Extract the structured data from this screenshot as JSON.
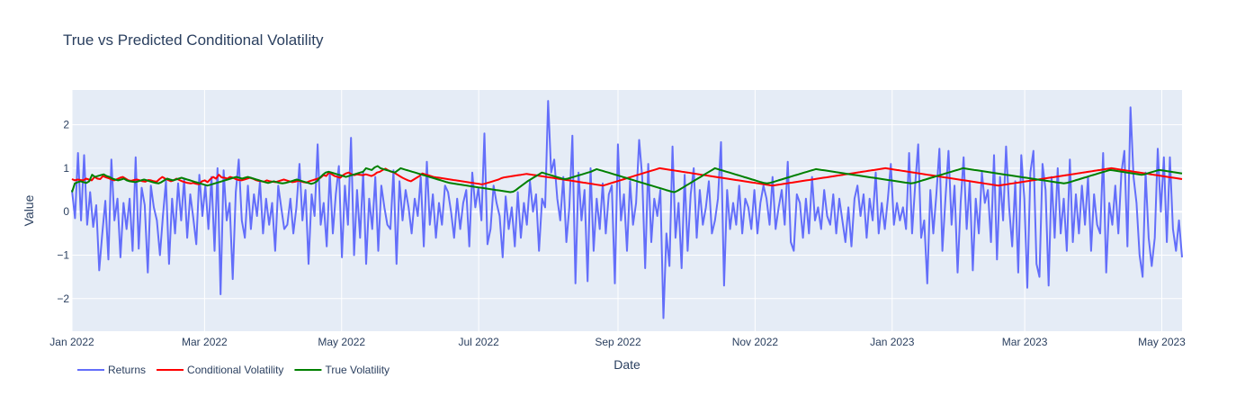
{
  "chart_data": {
    "type": "line",
    "title": "True vs Predicted Conditional Volatility",
    "xlabel": "Date",
    "ylabel": "Value",
    "x_start": "2022-01-01",
    "x_end": "2023-05-10",
    "xlim": [
      "2022-01-01",
      "2023-05-10"
    ],
    "ylim": [
      -2.75,
      2.8
    ],
    "x_ticks": [
      {
        "date": "2022-01-01",
        "label": "Jan 2022"
      },
      {
        "date": "2022-03-01",
        "label": "Mar 2022"
      },
      {
        "date": "2022-05-01",
        "label": "May 2022"
      },
      {
        "date": "2022-07-01",
        "label": "Jul 2022"
      },
      {
        "date": "2022-09-01",
        "label": "Sep 2022"
      },
      {
        "date": "2022-11-01",
        "label": "Nov 2022"
      },
      {
        "date": "2023-01-01",
        "label": "Jan 2023"
      },
      {
        "date": "2023-03-01",
        "label": "Mar 2023"
      },
      {
        "date": "2023-05-01",
        "label": "May 2023"
      }
    ],
    "y_ticks": [
      2,
      1,
      0,
      -1,
      -2
    ],
    "grid": true,
    "legend_position": "bottom-left",
    "background": "#e5ecf6",
    "series": [
      {
        "name": "Returns",
        "color": "#636efa",
        "values": [
          0.5,
          -0.15,
          1.35,
          -0.2,
          1.3,
          -0.3,
          0.45,
          -0.35,
          0.15,
          -1.35,
          -0.5,
          0.25,
          -1.1,
          1.2,
          -0.2,
          0.3,
          -1.05,
          0.2,
          -0.4,
          0.3,
          -0.9,
          1.25,
          -0.85,
          0.55,
          0.15,
          -1.4,
          0.6,
          0.1,
          -0.2,
          -1.0,
          -0.1,
          0.7,
          -1.2,
          0.3,
          -0.5,
          0.65,
          -0.2,
          0.75,
          -0.6,
          0.4,
          -0.15,
          -0.75,
          0.85,
          -0.1,
          0.6,
          -0.4,
          0.8,
          -0.9,
          1.0,
          -1.9,
          0.95,
          -0.2,
          0.2,
          -1.55,
          0.45,
          1.2,
          -0.2,
          -0.6,
          0.6,
          -0.4,
          0.4,
          -0.1,
          0.7,
          -0.5,
          0.3,
          -0.3,
          0.2,
          -0.9,
          0.6,
          0.1,
          -0.4,
          -0.3,
          0.3,
          -0.5,
          0.1,
          1.1,
          -0.2,
          0.5,
          -1.2,
          0.4,
          -0.1,
          1.55,
          -0.3,
          0.2,
          -0.8,
          0.9,
          -0.5,
          0.4,
          1.05,
          -1.05,
          0.6,
          -0.3,
          1.7,
          -1.0,
          0.5,
          -0.6,
          0.9,
          -1.2,
          0.3,
          -0.4,
          0.8,
          -0.9,
          0.6,
          0.1,
          -0.3,
          -0.4,
          0.95,
          -1.2,
          0.7,
          -0.2,
          0.5,
          0.1,
          -0.5,
          0.3,
          -0.1,
          0.8,
          -0.8,
          1.15,
          -0.3,
          0.4,
          -0.6,
          0.2,
          -0.3,
          0.6,
          0.45,
          0.0,
          -0.6,
          0.3,
          -0.4,
          0.2,
          0.5,
          -0.8,
          0.9,
          0.1,
          0.55,
          -0.2,
          1.8,
          -0.75,
          -0.4,
          0.6,
          0.2,
          -0.1,
          -1.05,
          0.35,
          -0.4,
          0.1,
          -0.8,
          0.45,
          -0.6,
          0.2,
          -0.3,
          0.7,
          0.0,
          0.4,
          -0.9,
          0.3,
          0.1,
          2.55,
          0.9,
          1.2,
          0.3,
          -0.2,
          0.8,
          -0.7,
          0.1,
          1.75,
          -1.65,
          0.9,
          -0.2,
          0.5,
          -1.6,
          1.0,
          -0.9,
          0.3,
          -0.4,
          0.65,
          -0.5,
          0.4,
          0.6,
          -1.65,
          1.55,
          -0.2,
          0.4,
          -0.9,
          0.7,
          -0.3,
          0.2,
          1.65,
          0.8,
          -1.3,
          1.1,
          -0.7,
          0.3,
          -0.1,
          0.5,
          -2.45,
          -0.5,
          -1.25,
          1.5,
          -0.6,
          0.2,
          -1.3,
          0.85,
          -0.9,
          0.4,
          1.0,
          -0.6,
          0.5,
          -0.3,
          0.1,
          0.7,
          -0.5,
          -0.2,
          0.3,
          1.6,
          -1.7,
          0.5,
          -0.4,
          0.2,
          -0.3,
          0.6,
          -0.5,
          0.3,
          0.1,
          -0.4,
          0.5,
          -0.5,
          0.2,
          0.6,
          0.3,
          -0.3,
          0.8,
          -0.4,
          0.1,
          0.5,
          -0.3,
          1.15,
          -0.7,
          -0.9,
          0.4,
          0.2,
          -0.6,
          0.3,
          -0.5,
          0.8,
          -0.2,
          0.1,
          -0.4,
          0.5,
          -0.1,
          -0.3,
          0.4,
          -0.5,
          0.3,
          -0.2,
          -0.7,
          0.1,
          -0.8,
          0.3,
          0.6,
          -0.1,
          0.4,
          -0.6,
          0.3,
          -0.2,
          0.9,
          -0.5,
          0.2,
          -0.4,
          0.3,
          1.1,
          -0.3,
          0.2,
          -0.2,
          0.1,
          -0.4,
          1.35,
          -0.5,
          0.6,
          1.55,
          -0.6,
          -0.2,
          -1.65,
          0.5,
          -0.5,
          0.4,
          1.45,
          -0.9,
          0.3,
          1.4,
          -0.3,
          0.6,
          -1.4,
          0.2,
          1.25,
          -0.4,
          0.7,
          -1.35,
          0.3,
          -0.5,
          0.9,
          0.2,
          0.5,
          -0.7,
          1.3,
          -1.1,
          0.8,
          -0.2,
          1.5,
          0.1,
          -0.8,
          0.7,
          -1.4,
          1.3,
          0.3,
          -1.75,
          0.9,
          1.4,
          -1.2,
          -1.5,
          1.1,
          0.5,
          -1.7,
          0.8,
          -0.6,
          1.0,
          -0.5,
          0.3,
          -0.9,
          1.2,
          -0.7,
          0.4,
          -0.5,
          0.6,
          -0.3,
          0.8,
          -0.9,
          0.4,
          -0.3,
          -0.5,
          1.35,
          -1.4,
          0.2,
          -0.3,
          0.6,
          -0.5,
          0.9,
          1.4,
          -0.8,
          2.4,
          0.8,
          0.2,
          -1.0,
          -1.5,
          0.9,
          -0.6,
          -1.25,
          -0.6,
          1.45,
          0.0,
          1.25,
          -0.7,
          1.25,
          -0.4,
          -0.9,
          -0.2,
          -1.05
        ]
      },
      {
        "name": "Conditional Volatility",
        "color": "#ff0000",
        "values": [
          0.75,
          0.72,
          0.74,
          0.73,
          0.72,
          0.76,
          0.74,
          0.72,
          0.8,
          0.76,
          0.75,
          0.82,
          0.79,
          0.77,
          0.74,
          0.72,
          0.75,
          0.78,
          0.8,
          0.76,
          0.72,
          0.71,
          0.73,
          0.74,
          0.72,
          0.7,
          0.69,
          0.73,
          0.72,
          0.7,
          0.69,
          0.75,
          0.8,
          0.76,
          0.73,
          0.7,
          0.72,
          0.76,
          0.73,
          0.7,
          0.68,
          0.66,
          0.65,
          0.66,
          0.64,
          0.63,
          0.7,
          0.72,
          0.68,
          0.75,
          0.8,
          0.76,
          0.85,
          0.79,
          0.78,
          0.76,
          0.8,
          0.78,
          0.75,
          0.73,
          0.72,
          0.74,
          0.76,
          0.78,
          0.76,
          0.73,
          0.71,
          0.7,
          0.69,
          0.72,
          0.7,
          0.69,
          0.68,
          0.7,
          0.72,
          0.74,
          0.72,
          0.7,
          0.68,
          0.69,
          0.71,
          0.7,
          0.68,
          0.67,
          0.7,
          0.72,
          0.74,
          0.76,
          0.78,
          0.84,
          0.82,
          0.9,
          0.86,
          0.82,
          0.8,
          0.78,
          0.84,
          0.88,
          0.9,
          0.86,
          0.84,
          0.86,
          0.85,
          0.84,
          0.86,
          0.84,
          0.82,
          0.85,
          0.9,
          0.92,
          0.96,
          0.99,
          0.95,
          0.92,
          0.9,
          0.86,
          0.82,
          0.78,
          0.75,
          0.72,
          0.7,
          0.74,
          0.78,
          0.82,
          0.88,
          0.86,
          0.84,
          0.82,
          0.8,
          0.79,
          0.78,
          0.77,
          0.76,
          0.75,
          0.74,
          0.73,
          0.72,
          0.71,
          0.7,
          0.69,
          0.68,
          0.67,
          0.66,
          0.65,
          0.64,
          0.63,
          0.64,
          0.66,
          0.68,
          0.7,
          0.72,
          0.74,
          0.77,
          0.79,
          0.8,
          0.81,
          0.82,
          0.83,
          0.84,
          0.85,
          0.86,
          0.87,
          0.86,
          0.85,
          0.84,
          0.83,
          0.82,
          0.81,
          0.8,
          0.79,
          0.78,
          0.77,
          0.76,
          0.75,
          0.74,
          0.73,
          0.72,
          0.71,
          0.7,
          0.69,
          0.68,
          0.67,
          0.66,
          0.65,
          0.64,
          0.63,
          0.62,
          0.61,
          0.6,
          0.62,
          0.64,
          0.66,
          0.68,
          0.7,
          0.72,
          0.74,
          0.76,
          0.78,
          0.8,
          0.82,
          0.84,
          0.86,
          0.88,
          0.9,
          0.92,
          0.94,
          0.96,
          0.98,
          1.0,
          0.99,
          0.98,
          0.97,
          0.96,
          0.95,
          0.94,
          0.93,
          0.92,
          0.91,
          0.9,
          0.89,
          0.88,
          0.87,
          0.86,
          0.85,
          0.84,
          0.83,
          0.82,
          0.81,
          0.8,
          0.79,
          0.78,
          0.77,
          0.76,
          0.75,
          0.74,
          0.73,
          0.72,
          0.71,
          0.7,
          0.69,
          0.68,
          0.67,
          0.66,
          0.65,
          0.64,
          0.63,
          0.62,
          0.61,
          0.6,
          0.61,
          0.62,
          0.63,
          0.64,
          0.65,
          0.66,
          0.67,
          0.68,
          0.69,
          0.7,
          0.71,
          0.72,
          0.73,
          0.74,
          0.75,
          0.76,
          0.77,
          0.78,
          0.79,
          0.8,
          0.81,
          0.82,
          0.83,
          0.84,
          0.85,
          0.86,
          0.87,
          0.88,
          0.89,
          0.9,
          0.91,
          0.92,
          0.93,
          0.94,
          0.95,
          0.96,
          0.97,
          0.98,
          0.99,
          1.0,
          0.99,
          0.98,
          0.97,
          0.96,
          0.95,
          0.94,
          0.93,
          0.92,
          0.91,
          0.9,
          0.89,
          0.88,
          0.87,
          0.86,
          0.85,
          0.84,
          0.83,
          0.82,
          0.81,
          0.8,
          0.79,
          0.78,
          0.77,
          0.76,
          0.75,
          0.74,
          0.73,
          0.72,
          0.71,
          0.7,
          0.69,
          0.68,
          0.67,
          0.66,
          0.65,
          0.64,
          0.63,
          0.62,
          0.61,
          0.6,
          0.61,
          0.62,
          0.63,
          0.64,
          0.65,
          0.66,
          0.67,
          0.68,
          0.69,
          0.7,
          0.71,
          0.72,
          0.73,
          0.74,
          0.75,
          0.76,
          0.77,
          0.78,
          0.79,
          0.8,
          0.81,
          0.82,
          0.83,
          0.84,
          0.85,
          0.86,
          0.87,
          0.88,
          0.89,
          0.9,
          0.91,
          0.92,
          0.93,
          0.94,
          0.95,
          0.96,
          0.97,
          0.98,
          0.99,
          1.0,
          0.99,
          0.98,
          0.97,
          0.96,
          0.95,
          0.94,
          0.93,
          0.92,
          0.91,
          0.9,
          0.89,
          0.88,
          0.87,
          0.86,
          0.85,
          0.84,
          0.83,
          0.82,
          0.81,
          0.8,
          0.79,
          0.78,
          0.77,
          0.76,
          0.75
        ]
      },
      {
        "name": "True Volatility",
        "color": "#008000",
        "values": [
          0.45,
          0.65,
          0.68,
          0.7,
          0.68,
          0.66,
          0.7,
          0.85,
          0.8,
          0.82,
          0.84,
          0.86,
          0.82,
          0.8,
          0.76,
          0.74,
          0.72,
          0.74,
          0.76,
          0.72,
          0.7,
          0.69,
          0.68,
          0.7,
          0.72,
          0.74,
          0.72,
          0.7,
          0.68,
          0.66,
          0.65,
          0.68,
          0.72,
          0.76,
          0.74,
          0.72,
          0.74,
          0.76,
          0.78,
          0.76,
          0.74,
          0.72,
          0.7,
          0.68,
          0.66,
          0.64,
          0.62,
          0.6,
          0.62,
          0.64,
          0.66,
          0.68,
          0.7,
          0.72,
          0.74,
          0.76,
          0.78,
          0.8,
          0.78,
          0.76,
          0.78,
          0.8,
          0.78,
          0.76,
          0.74,
          0.72,
          0.7,
          0.68,
          0.66,
          0.68,
          0.7,
          0.68,
          0.66,
          0.65,
          0.66,
          0.68,
          0.7,
          0.72,
          0.74,
          0.72,
          0.7,
          0.68,
          0.66,
          0.64,
          0.66,
          0.7,
          0.78,
          0.85,
          0.9,
          0.92,
          0.9,
          0.88,
          0.86,
          0.84,
          0.82,
          0.8,
          0.82,
          0.84,
          0.86,
          0.88,
          0.9,
          0.92,
          1.0,
          0.98,
          0.96,
          1.02,
          1.05,
          1.0,
          0.98,
          0.96,
          0.94,
          0.92,
          0.9,
          0.95,
          1.0,
          0.98,
          0.96,
          0.94,
          0.92,
          0.9,
          0.88,
          0.86,
          0.84,
          0.82,
          0.8,
          0.78,
          0.76,
          0.74,
          0.72,
          0.7,
          0.68,
          0.66,
          0.65,
          0.64,
          0.63,
          0.62,
          0.61,
          0.6,
          0.59,
          0.58,
          0.57,
          0.56,
          0.55,
          0.54,
          0.53,
          0.52,
          0.51,
          0.5,
          0.49,
          0.48,
          0.47,
          0.46,
          0.45,
          0.46,
          0.5,
          0.55,
          0.6,
          0.65,
          0.7,
          0.74,
          0.78,
          0.82,
          0.86,
          0.9,
          0.88,
          0.86,
          0.84,
          0.82,
          0.8,
          0.78,
          0.76,
          0.75,
          0.76,
          0.78,
          0.8,
          0.82,
          0.84,
          0.86,
          0.88,
          0.9,
          0.92,
          0.95,
          0.98,
          0.96,
          0.94,
          0.92,
          0.9,
          0.88,
          0.86,
          0.84,
          0.82,
          0.8,
          0.78,
          0.76,
          0.74,
          0.72,
          0.7,
          0.68,
          0.66,
          0.64,
          0.62,
          0.6,
          0.58,
          0.56,
          0.54,
          0.52,
          0.5,
          0.48,
          0.46,
          0.45,
          0.48,
          0.52,
          0.56,
          0.6,
          0.64,
          0.68,
          0.72,
          0.76,
          0.8,
          0.84,
          0.88,
          0.92,
          0.96,
          1.0,
          0.98,
          0.96,
          0.94,
          0.92,
          0.9,
          0.88,
          0.86,
          0.84,
          0.82,
          0.8,
          0.78,
          0.76,
          0.74,
          0.72,
          0.7,
          0.68,
          0.66,
          0.65,
          0.66,
          0.68,
          0.7,
          0.72,
          0.74,
          0.76,
          0.78,
          0.8,
          0.82,
          0.84,
          0.86,
          0.88,
          0.9,
          0.92,
          0.94,
          0.96,
          0.98,
          0.97,
          0.96,
          0.95,
          0.94,
          0.93,
          0.92,
          0.91,
          0.9,
          0.89,
          0.88,
          0.87,
          0.86,
          0.85,
          0.84,
          0.83,
          0.82,
          0.81,
          0.8,
          0.79,
          0.78,
          0.77,
          0.76,
          0.75,
          0.74,
          0.73,
          0.72,
          0.71,
          0.7,
          0.69,
          0.68,
          0.67,
          0.66,
          0.65,
          0.66,
          0.68,
          0.7,
          0.72,
          0.74,
          0.76,
          0.78,
          0.8,
          0.82,
          0.84,
          0.86,
          0.88,
          0.9,
          0.92,
          0.94,
          0.96,
          0.98,
          1.0,
          0.99,
          0.98,
          0.97,
          0.96,
          0.95,
          0.94,
          0.93,
          0.92,
          0.91,
          0.9,
          0.89,
          0.88,
          0.87,
          0.86,
          0.85,
          0.84,
          0.83,
          0.82,
          0.81,
          0.8,
          0.79,
          0.78,
          0.77,
          0.76,
          0.75,
          0.74,
          0.73,
          0.72,
          0.71,
          0.7,
          0.69,
          0.68,
          0.67,
          0.66,
          0.65,
          0.66,
          0.68,
          0.7,
          0.72,
          0.74,
          0.76,
          0.78,
          0.8,
          0.82,
          0.84,
          0.86,
          0.88,
          0.9,
          0.92,
          0.94,
          0.96,
          0.95,
          0.94,
          0.93,
          0.92,
          0.91,
          0.9,
          0.89,
          0.88,
          0.87,
          0.86,
          0.85,
          0.86,
          0.88,
          0.9,
          0.92,
          0.94,
          0.96,
          0.95,
          0.94,
          0.93,
          0.92,
          0.91,
          0.9,
          0.89,
          0.88
        ]
      }
    ]
  }
}
